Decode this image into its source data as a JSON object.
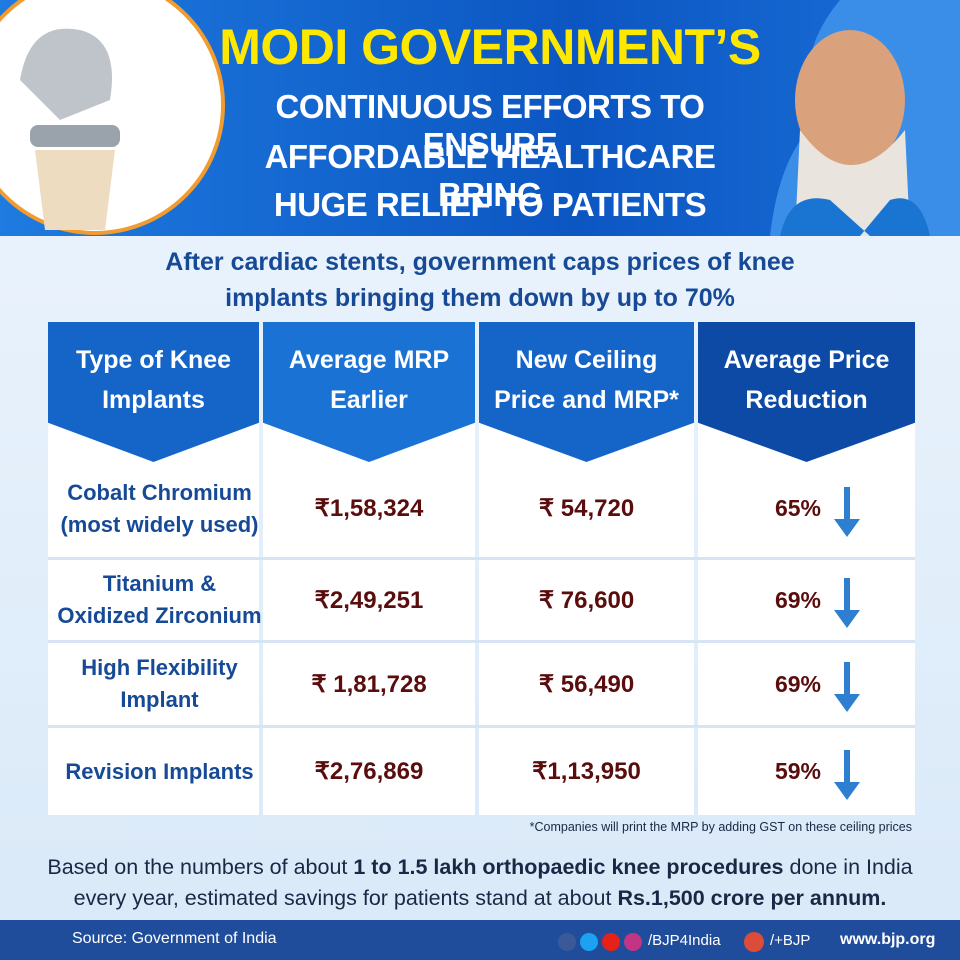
{
  "header": {
    "title_lines": [
      "MODI GOVERNMENT’S",
      "CONTINUOUS EFFORTS TO ENSURE",
      "AFFORDABLE HEALTHCARE BRING",
      "HUGE RELIEF TO PATIENTS"
    ]
  },
  "subtitle_lines": [
    "After cardiac stents, government caps prices of knee",
    "implants bringing them down by up to 70%"
  ],
  "table": {
    "headers": [
      "Type of Knee Implants",
      "Average MRP Earlier",
      "New Ceiling Price and MRP*",
      "Average Price Reduction"
    ],
    "rows": [
      [
        "Cobalt Chromium (most widely used)",
        "₹1,58,324",
        "₹ 54,720",
        "65%"
      ],
      [
        "Titanium & Oxidized Zirconium",
        "₹2,49,251",
        "₹ 76,600",
        "69%"
      ],
      [
        "High Flexibility Implant",
        "₹ 1,81,728",
        "₹ 56,490",
        "69%"
      ],
      [
        "Revision Implants",
        "₹2,76,869",
        "₹1,13,950",
        "59%"
      ]
    ]
  },
  "footnote": "*Companies will print the MRP by adding GST on these ceiling prices",
  "bottom_note": [
    "Based on the numbers of about ",
    "1 to 1.5 lakh orthopaedic knee procedures",
    " done in India every year, estimated savings for patients stand at about ",
    "Rs.1,500 crore per annum."
  ],
  "footer": {
    "source": "Source: Government of India",
    "handle": "/BJP4India",
    "gplus": "/+BJP",
    "website": "www.bjp.org"
  }
}
